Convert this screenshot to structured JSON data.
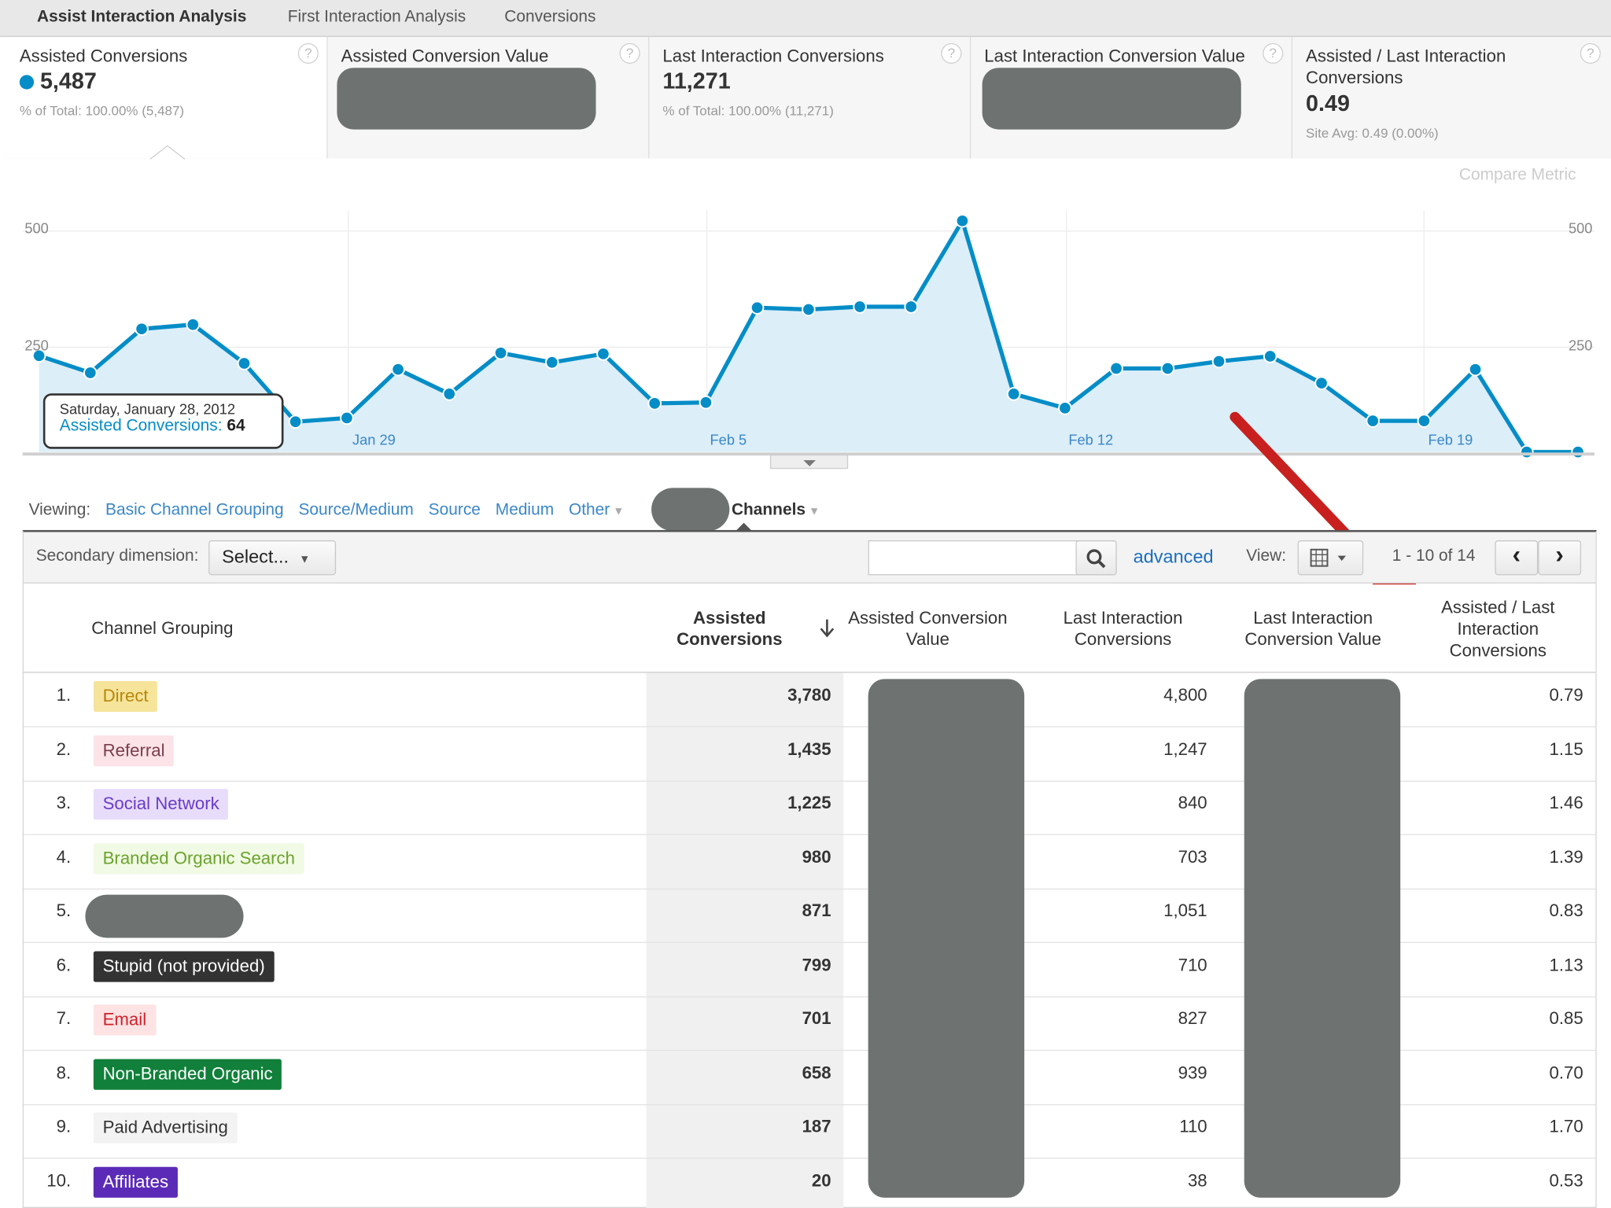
{
  "tabs": [
    "Assist Interaction Analysis",
    "First Interaction Analysis",
    "Conversions"
  ],
  "cards": [
    {
      "label": "Assisted Conversions",
      "value": "5,487",
      "sub": "% of Total: 100.00% (5,487)"
    },
    {
      "label": "Assisted Conversion Value"
    },
    {
      "label": "Last Interaction Conversions",
      "value": "11,271",
      "sub": "% of Total: 100.00% (11,271)"
    },
    {
      "label": "Last Interaction Conversion Value"
    },
    {
      "label": "Assisted / Last Interaction Conversions",
      "value": "0.49",
      "sub": "Site Avg: 0.49 (0.00%)"
    }
  ],
  "help_glyph": "?",
  "compare_metric": "Compare Metric",
  "chart_data": {
    "type": "area",
    "y_ticks": [
      "500",
      "250"
    ],
    "ylim": [
      0,
      560
    ],
    "x_labels": [
      "Jan 29",
      "Feb 5",
      "Feb 12",
      "Feb 19"
    ],
    "series": [
      {
        "name": "Assisted Conversions",
        "values": [
          204,
          168,
          261,
          270,
          188,
          64,
          72,
          175,
          123,
          210,
          190,
          208,
          103,
          105,
          306,
          302,
          308,
          308,
          490,
          123,
          93,
          177,
          177,
          192,
          203,
          146,
          66,
          66,
          175,
          0,
          0
        ]
      }
    ],
    "color": "#058dc7"
  },
  "tooltip": {
    "date": "Saturday, January 28, 2012",
    "metric": "Assisted Conversions:",
    "value": "64"
  },
  "viewing": {
    "label": "Viewing:",
    "links": [
      "Basic Channel Grouping",
      "Source/Medium",
      "Source",
      "Medium",
      "Other"
    ],
    "current": "Channels"
  },
  "toolbar": {
    "secondary_label": "Secondary dimension:",
    "select_value": "Select...",
    "advanced": "advanced",
    "view_label": "View:",
    "pagination": "1 - 10 of 14",
    "prev": "‹",
    "next": "›"
  },
  "columns": [
    "Channel Grouping",
    "Assisted Conversions",
    "Assisted Conversion Value",
    "Last Interaction Conversions",
    "Last Interaction Conversion Value",
    "Assisted / Last Interaction Conversions"
  ],
  "rows": [
    {
      "n": "1.",
      "channel": "Direct",
      "bg": "#f5e49a",
      "fg": "#b8860b",
      "assisted": "3,780",
      "last": "4,800",
      "ratio": "0.79"
    },
    {
      "n": "2.",
      "channel": "Referral",
      "bg": "#fbe3e8",
      "fg": "#7a3d4b",
      "assisted": "1,435",
      "last": "1,247",
      "ratio": "1.15"
    },
    {
      "n": "3.",
      "channel": "Social Network",
      "bg": "#e8dcfb",
      "fg": "#6a3cc8",
      "assisted": "1,225",
      "last": "840",
      "ratio": "1.46"
    },
    {
      "n": "4.",
      "channel": "Branded Organic Search",
      "bg": "#f1fae4",
      "fg": "#6aa32d",
      "assisted": "980",
      "last": "703",
      "ratio": "1.39"
    },
    {
      "n": "5.",
      "channel": "",
      "bg": "#6e7371",
      "fg": "#fff",
      "assisted": "871",
      "last": "1,051",
      "ratio": "0.83"
    },
    {
      "n": "6.",
      "channel": "Stupid (not provided)",
      "bg": "#333333",
      "fg": "#ffffff",
      "assisted": "799",
      "last": "710",
      "ratio": "1.13"
    },
    {
      "n": "7.",
      "channel": "Email",
      "bg": "#fde3e3",
      "fg": "#d0202a",
      "assisted": "701",
      "last": "827",
      "ratio": "0.85"
    },
    {
      "n": "8.",
      "channel": "Non-Branded Organic",
      "bg": "#11803a",
      "fg": "#ffffff",
      "assisted": "658",
      "last": "939",
      "ratio": "0.70"
    },
    {
      "n": "9.",
      "channel": "Paid Advertising",
      "bg": "#f3f3f3",
      "fg": "#333333",
      "assisted": "187",
      "last": "110",
      "ratio": "1.70"
    },
    {
      "n": "10.",
      "channel": "Affiliates",
      "bg": "#5b2bb8",
      "fg": "#ffffff",
      "assisted": "20",
      "last": "38",
      "ratio": "0.53"
    }
  ]
}
